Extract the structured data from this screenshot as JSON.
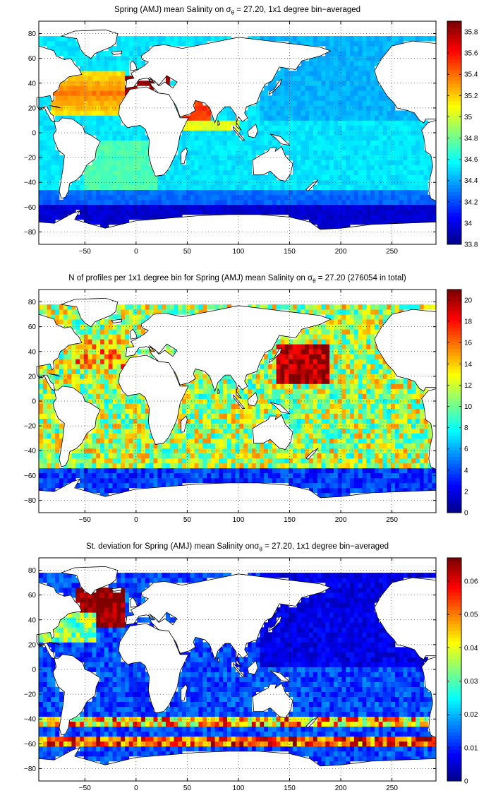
{
  "chart_data": [
    {
      "type": "heatmap",
      "title_prefix": "Spring (AMJ) mean Salinity on ",
      "title_sigma": "σ",
      "title_sub": "θ",
      "title_suffix": " = 27.20, 1x1 degree bin−averaged",
      "xlim": [
        -95,
        293
      ],
      "ylim": [
        -90,
        90
      ],
      "xticks": [
        -50,
        0,
        50,
        100,
        150,
        200,
        250
      ],
      "yticks": [
        80,
        60,
        40,
        20,
        0,
        -20,
        -40,
        -60,
        -80
      ],
      "grid": true,
      "colorbar": {
        "clim": [
          33.8,
          35.9
        ],
        "ticks": [
          35.8,
          35.6,
          35.4,
          35.2,
          35,
          34.8,
          34.6,
          34.4,
          34.2,
          34,
          33.8
        ],
        "colormap": "jet"
      }
    },
    {
      "type": "heatmap",
      "title_prefix": "N of profiles per 1x1 degree bin for Spring (AMJ) mean Salinity on ",
      "title_sigma": "σ",
      "title_sub": "θ",
      "title_suffix": " = 27.20 (276054 in total)",
      "xlim": [
        -95,
        293
      ],
      "ylim": [
        -90,
        90
      ],
      "xticks": [
        -50,
        0,
        50,
        100,
        150,
        200,
        250
      ],
      "yticks": [
        80,
        60,
        40,
        20,
        0,
        -20,
        -40,
        -60,
        -80
      ],
      "grid": true,
      "colorbar": {
        "clim": [
          0,
          21
        ],
        "ticks": [
          20,
          18,
          16,
          14,
          12,
          10,
          8,
          6,
          4,
          2,
          0
        ],
        "colormap": "jet"
      }
    },
    {
      "type": "heatmap",
      "title_prefix": "St. deviation for Spring (AMJ) mean Salinity on",
      "title_sigma": "σ",
      "title_sub": "θ",
      "title_suffix": " = 27.20, 1x1 degree bin−averaged",
      "xlim": [
        -95,
        293
      ],
      "ylim": [
        -90,
        90
      ],
      "xticks": [
        -50,
        0,
        50,
        100,
        150,
        200,
        250
      ],
      "yticks": [
        80,
        60,
        40,
        20,
        0,
        -20,
        -40,
        -60,
        -80
      ],
      "grid": true,
      "colorbar": {
        "clim": [
          0,
          0.067
        ],
        "ticks": [
          0.06,
          0.05,
          0.04,
          0.03,
          0.02,
          0.01,
          0
        ],
        "colormap": "jet"
      }
    }
  ]
}
